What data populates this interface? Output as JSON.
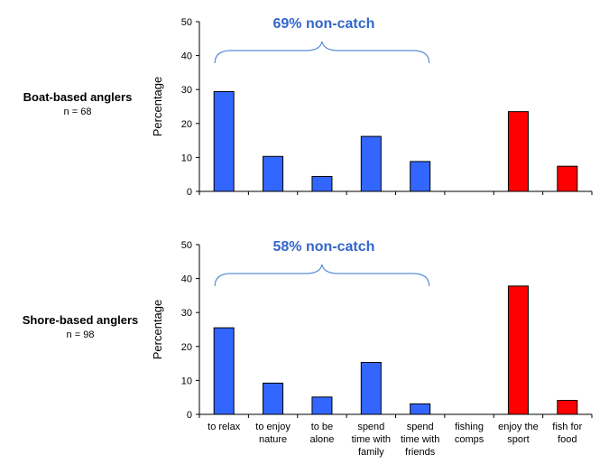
{
  "colors": {
    "non_catch": "#3366ff",
    "catch": "#ff0000",
    "annotation": "#3366cc",
    "bracket": "#5b8fd6",
    "axis": "#000000"
  },
  "panels": [
    {
      "title": "Boat-based anglers",
      "n_label": "n = 68"
    },
    {
      "title": "Shore-based anglers",
      "n_label": "n = 98"
    }
  ],
  "chart_data": [
    {
      "type": "bar",
      "title": "Boat-based anglers",
      "ylabel": "Percentage",
      "xlabel": "",
      "ylim": [
        0,
        50
      ],
      "yticks": [
        0,
        10,
        20,
        30,
        40,
        50
      ],
      "grid": false,
      "categories": [
        "to relax",
        "to enjoy nature",
        "to be alone",
        "spend time with family",
        "spend time with friends",
        "fishing comps",
        "enjoy the sport",
        "fish for food"
      ],
      "values": [
        29.4,
        10.3,
        4.4,
        16.2,
        8.8,
        0,
        23.5,
        7.4
      ],
      "bar_groups": [
        "non_catch",
        "non_catch",
        "non_catch",
        "non_catch",
        "non_catch",
        "non_catch",
        "catch",
        "catch"
      ],
      "annotation": {
        "text": "69% non-catch",
        "spans": [
          "to relax",
          "spend time with friends"
        ]
      }
    },
    {
      "type": "bar",
      "title": "Shore-based anglers",
      "ylabel": "Percentage",
      "xlabel": "",
      "ylim": [
        0,
        50
      ],
      "yticks": [
        0,
        10,
        20,
        30,
        40,
        50
      ],
      "grid": false,
      "categories": [
        "to relax",
        "to enjoy nature",
        "to be alone",
        "spend time with family",
        "spend time with friends",
        "fishing comps",
        "enjoy the sport",
        "fish for food"
      ],
      "category_label_lines": [
        [
          "to relax"
        ],
        [
          "to enjoy",
          "nature"
        ],
        [
          "to be",
          "alone"
        ],
        [
          "spend",
          "time with",
          "family"
        ],
        [
          "spend",
          "time with",
          "friends"
        ],
        [
          "fishing",
          "comps"
        ],
        [
          "enjoy the",
          "sport"
        ],
        [
          "fish for",
          "food"
        ]
      ],
      "values": [
        25.5,
        9.2,
        5.1,
        15.3,
        3.1,
        0,
        37.8,
        4.1
      ],
      "bar_groups": [
        "non_catch",
        "non_catch",
        "non_catch",
        "non_catch",
        "non_catch",
        "non_catch",
        "catch",
        "catch"
      ],
      "annotation": {
        "text": "58% non-catch",
        "spans": [
          "to relax",
          "spend time with friends"
        ]
      }
    }
  ]
}
